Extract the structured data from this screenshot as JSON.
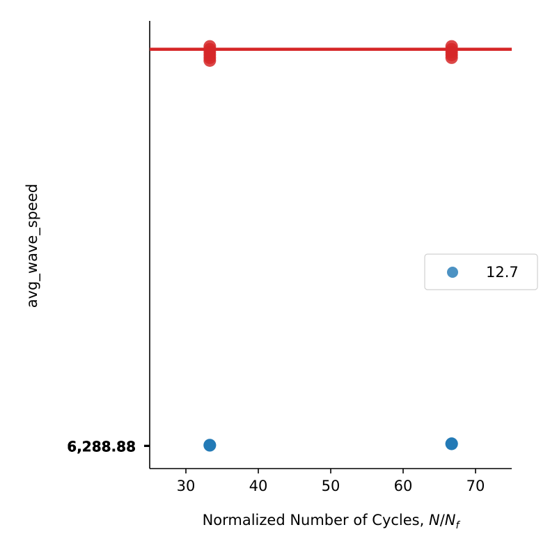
{
  "chart_data": {
    "type": "scatter",
    "xlabel_text": "Normalized Number of Cycles, ",
    "xlabel_math_N": "N",
    "xlabel_math_slash": "/",
    "xlabel_math_Nf": "N",
    "xlabel_math_sub": "f",
    "ylabel": "avg_wave_speed",
    "xlim": [
      25,
      75
    ],
    "x_ticks": [
      30,
      40,
      50,
      60,
      70
    ],
    "x_tick_labels": [
      "30",
      "40",
      "50",
      "60",
      "70"
    ],
    "y_tick_labels": [
      "6,288.88",
      "6,288.88",
      "6,288.88",
      "6,288.88",
      "6,288.88"
    ],
    "spines": "left-bottom",
    "grid": false,
    "legend_placement": "center-right",
    "legend": [
      {
        "label": "12.7",
        "color": "#1f77b4"
      }
    ],
    "series": [
      {
        "name": "12.7",
        "marker": "circle",
        "color": "#1f77b4",
        "points": [
          {
            "x": 33.3,
            "y": 0.03
          },
          {
            "x": 33.3,
            "y": 0.02
          },
          {
            "x": 66.7,
            "y": 0.08
          },
          {
            "x": 66.7,
            "y": 0.07
          }
        ]
      },
      {
        "marker": "circle",
        "color": "#d62728",
        "points": [
          {
            "x": 33.3,
            "y": 13.6
          },
          {
            "x": 33.3,
            "y": 13.7
          },
          {
            "x": 33.3,
            "y": 13.8
          },
          {
            "x": 33.3,
            "y": 13.9
          },
          {
            "x": 33.3,
            "y": 14.0
          },
          {
            "x": 33.3,
            "y": 14.1
          },
          {
            "x": 66.7,
            "y": 13.7
          },
          {
            "x": 66.7,
            "y": 13.8
          },
          {
            "x": 66.7,
            "y": 13.9
          },
          {
            "x": 66.7,
            "y": 14.0
          },
          {
            "x": 66.7,
            "y": 14.1
          }
        ]
      }
    ],
    "line": {
      "color": "#d62728",
      "x": [
        25,
        75
      ],
      "y": [
        14.0,
        14.0
      ]
    },
    "ylim": [
      -0.8,
      15.0
    ]
  }
}
